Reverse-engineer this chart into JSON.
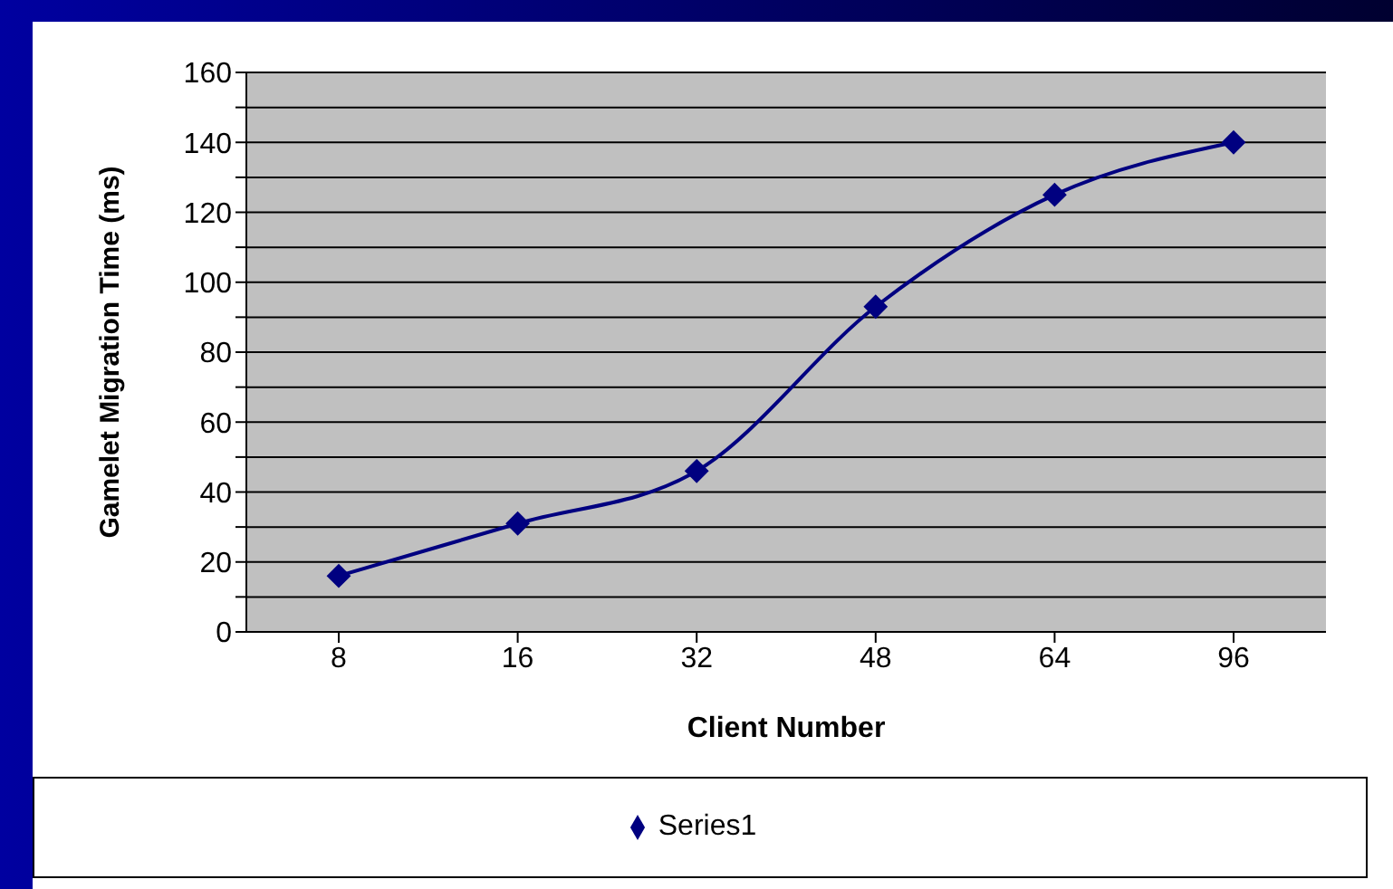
{
  "chart_data": {
    "type": "line",
    "xlabel": "Client Number",
    "ylabel": "Gamelet Migration Time (ms)",
    "categories": [
      "8",
      "16",
      "32",
      "48",
      "64",
      "96"
    ],
    "series": [
      {
        "name": "Series1",
        "color": "#000080",
        "values": [
          16,
          31,
          46,
          93,
          125,
          140
        ]
      }
    ],
    "ylim": [
      0,
      160
    ],
    "yticks": [
      0,
      {
        "value": 10,
        "label": null
      },
      20,
      {
        "value": 30,
        "label": null
      },
      40,
      {
        "value": 50,
        "label": null
      },
      60,
      {
        "value": 70,
        "label": null
      },
      80,
      {
        "value": 90,
        "label": null
      },
      100,
      {
        "value": 110,
        "label": null
      },
      120,
      {
        "value": 130,
        "label": null
      },
      140,
      {
        "value": 150,
        "label": null
      },
      160
    ],
    "grid": "y",
    "legend": "bottom",
    "marker": "diamond",
    "line_style": "solid"
  }
}
